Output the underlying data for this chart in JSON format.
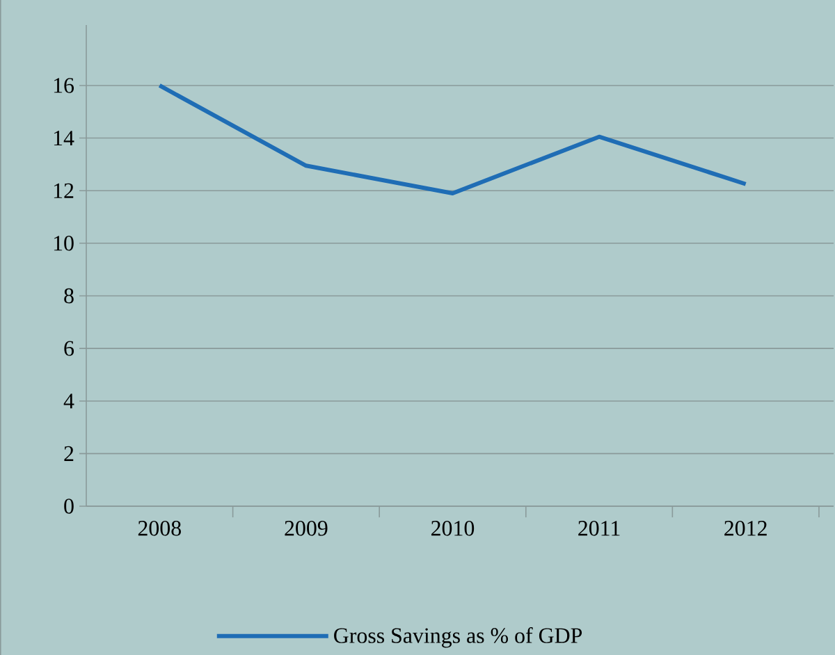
{
  "chart_data": {
    "type": "line",
    "categories": [
      "2008",
      "2009",
      "2010",
      "2011",
      "2012"
    ],
    "series": [
      {
        "name": "Gross Savings as % of GDP",
        "color": "#1f6db5",
        "values": [
          16,
          12.95,
          11.9,
          14.05,
          12.25
        ]
      }
    ],
    "ylim": [
      0,
      18.3
    ],
    "yticks": [
      0,
      2,
      4,
      6,
      8,
      10,
      12,
      14,
      16
    ],
    "grid": "y",
    "legend": "bottom",
    "marker": "none",
    "line_style": "solid"
  }
}
